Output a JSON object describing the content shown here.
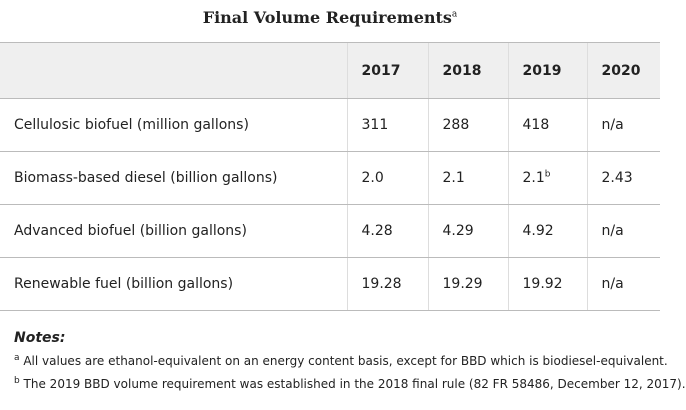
{
  "title": "Final Volume Requirements",
  "title_note": "a",
  "table": {
    "header": [
      "2017",
      "2018",
      "2019",
      "2020"
    ],
    "rows": [
      [
        "Cellulosic biofuel (million gallons)",
        "311",
        "288",
        "418",
        "n/a"
      ],
      [
        "Biomass-based diesel (billion gallons)",
        "2.0",
        "2.1",
        {
          "text": "2.1",
          "note": "b"
        },
        "2.43"
      ],
      [
        "Advanced biofuel (billion gallons)",
        "4.28",
        "4.29",
        "4.92",
        "n/a"
      ],
      [
        "Renewable fuel (billion gallons)",
        "19.28",
        "19.29",
        "19.92",
        "n/a"
      ]
    ]
  },
  "notes": {
    "heading": "Notes:",
    "items": [
      {
        "marker": "a",
        "text": "All values are ethanol-equivalent on an energy content basis, except for BBD which is biodiesel-equivalent."
      },
      {
        "marker": "b",
        "text": "The 2019 BBD volume requirement was established in the 2018 final rule (82 FR 58486, December 12, 2017)."
      }
    ]
  }
}
